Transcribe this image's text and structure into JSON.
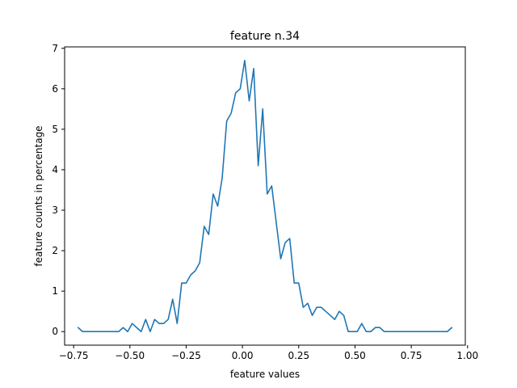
{
  "chart_data": {
    "type": "line",
    "title": "feature n.34",
    "xlabel": "feature values",
    "ylabel": "feature counts in percentage",
    "xlim": [
      -0.79,
      0.99
    ],
    "ylim": [
      -0.335,
      7.035
    ],
    "xticks": [
      -0.75,
      -0.5,
      -0.25,
      0.0,
      0.25,
      0.5,
      0.75,
      1.0
    ],
    "xtick_labels": [
      "−0.75",
      "−0.50",
      "−0.25",
      "0.00",
      "0.25",
      "0.50",
      "0.75",
      "1.00"
    ],
    "yticks": [
      0,
      1,
      2,
      3,
      4,
      5,
      6,
      7
    ],
    "ytick_labels": [
      "0",
      "1",
      "2",
      "3",
      "4",
      "5",
      "6",
      "7"
    ],
    "grid": false,
    "legend": "none",
    "line_color": "#1f77b4",
    "series": [
      {
        "x": [
          -0.73,
          -0.71,
          -0.69,
          -0.67,
          -0.65,
          -0.63,
          -0.61,
          -0.59,
          -0.57,
          -0.55,
          -0.53,
          -0.51,
          -0.49,
          -0.47,
          -0.45,
          -0.43,
          -0.41,
          -0.39,
          -0.37,
          -0.35,
          -0.33,
          -0.31,
          -0.29,
          -0.27,
          -0.25,
          -0.23,
          -0.21,
          -0.19,
          -0.17,
          -0.15,
          -0.13,
          -0.11,
          -0.09,
          -0.07,
          -0.05,
          -0.03,
          -0.01,
          0.01,
          0.03,
          0.05,
          0.07,
          0.09,
          0.11,
          0.13,
          0.15,
          0.17,
          0.19,
          0.21,
          0.23,
          0.25,
          0.27,
          0.29,
          0.31,
          0.33,
          0.35,
          0.37,
          0.39,
          0.41,
          0.43,
          0.45,
          0.47,
          0.49,
          0.51,
          0.53,
          0.55,
          0.57,
          0.59,
          0.61,
          0.63,
          0.65,
          0.67,
          0.69,
          0.71,
          0.73,
          0.75,
          0.77,
          0.79,
          0.81,
          0.83,
          0.85,
          0.87,
          0.89,
          0.91,
          0.93
        ],
        "y": [
          0.1,
          0.0,
          0.0,
          0.0,
          0.0,
          0.0,
          0.0,
          0.0,
          0.0,
          0.0,
          0.1,
          0.0,
          0.2,
          0.1,
          0.0,
          0.3,
          0.0,
          0.3,
          0.2,
          0.2,
          0.3,
          0.8,
          0.2,
          1.2,
          1.2,
          1.4,
          1.5,
          1.7,
          2.6,
          2.4,
          3.4,
          3.1,
          3.8,
          5.2,
          5.4,
          5.9,
          6.0,
          6.7,
          5.7,
          6.5,
          4.1,
          5.5,
          3.4,
          3.6,
          2.7,
          1.8,
          2.2,
          2.3,
          1.2,
          1.2,
          0.6,
          0.7,
          0.4,
          0.6,
          0.6,
          0.5,
          0.4,
          0.3,
          0.5,
          0.4,
          0.0,
          0.0,
          0.0,
          0.2,
          0.0,
          0.0,
          0.1,
          0.1,
          0.0,
          0.0,
          0.0,
          0.0,
          0.0,
          0.0,
          0.0,
          0.0,
          0.0,
          0.0,
          0.0,
          0.0,
          0.0,
          0.0,
          0.0,
          0.1
        ]
      }
    ]
  }
}
